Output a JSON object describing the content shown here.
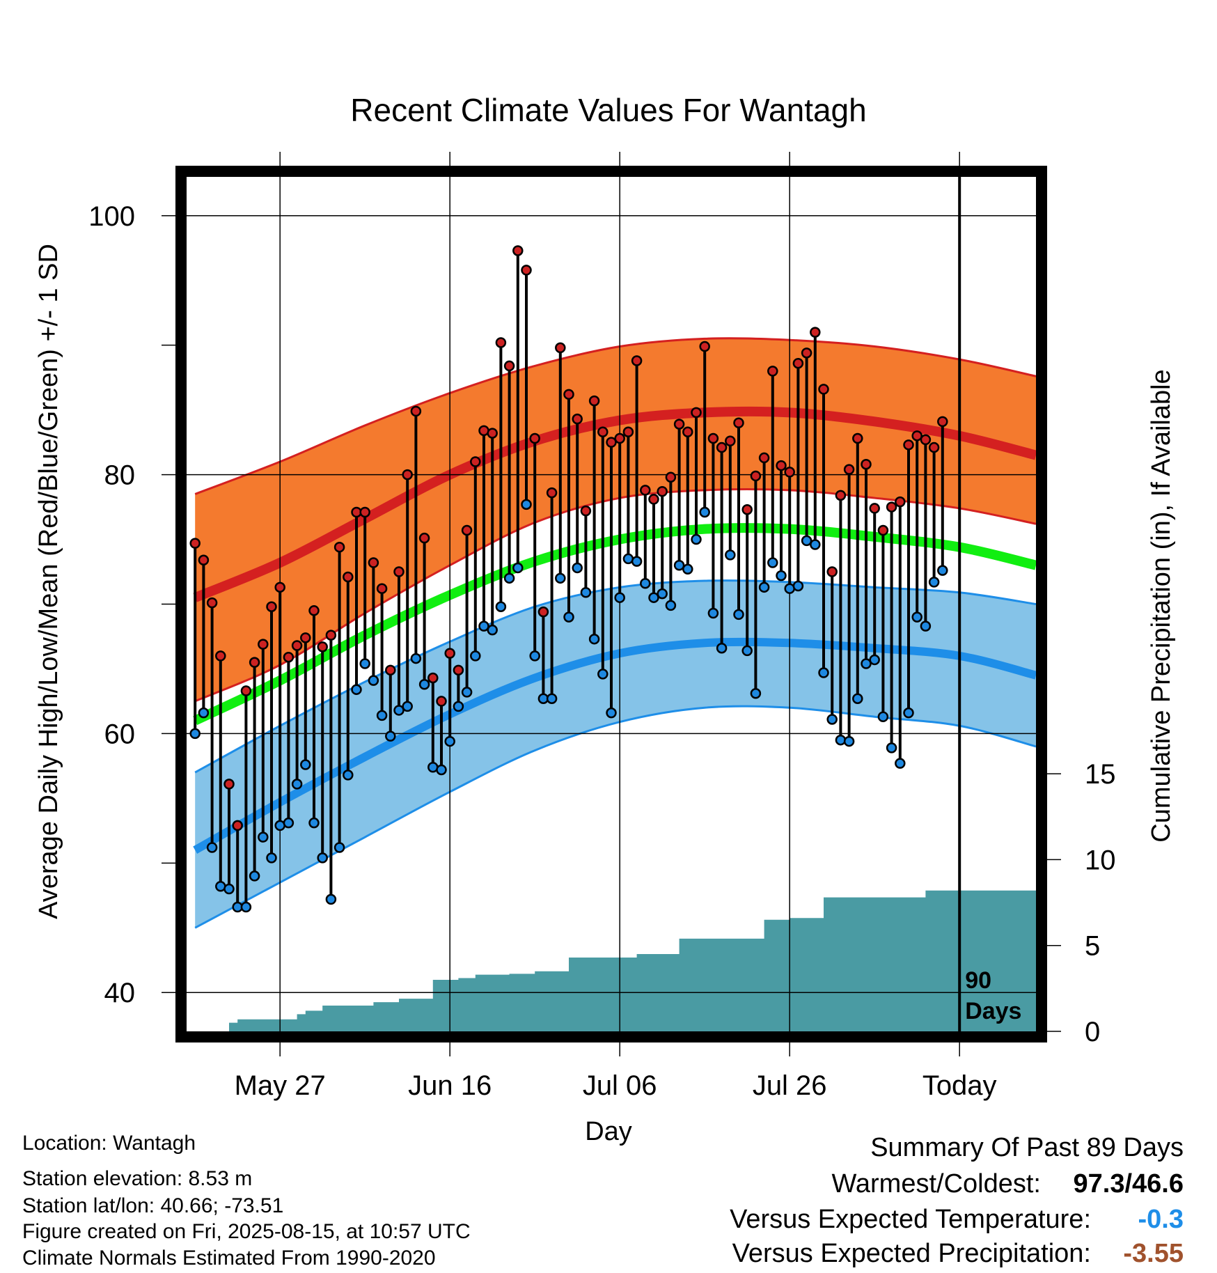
{
  "colors": {
    "high_band": "#f47a2e",
    "high_band_edge": "#d42020",
    "high_mean": "#d42020",
    "low_band": "#85c3e8",
    "low_band_edge": "#1e8ee8",
    "low_mean": "#1e8ee8",
    "mean_line": "#11ee11",
    "precip": "#4a9ba3",
    "high_dot": "#cc2222",
    "low_dot": "#1e88e0",
    "anomaly_temp": "#1e8ee8",
    "anomaly_precip": "#a0522d"
  },
  "chart_data": {
    "type": "line",
    "title": "Recent Climate Values For Wantagh",
    "xlabel": "Day",
    "ylabel_left": "Average Daily High/Low/Mean (Red/Blue/Green) +/- 1 SD",
    "ylabel_right": "Cumulative Precipitation (in), If Available",
    "x_tick_labels": [
      "May 27",
      "Jun 16",
      "Jul 06",
      "Jul 26",
      "Today"
    ],
    "x_tick_days": [
      10,
      30,
      50,
      70,
      90
    ],
    "xlim": [
      -1,
      99
    ],
    "y_left_ticks": [
      40,
      60,
      80,
      100
    ],
    "ylim_left": [
      37,
      103
    ],
    "y_right_ticks": [
      0,
      5,
      10,
      15
    ],
    "today_marker_label": [
      "90",
      "Days"
    ],
    "normals": {
      "x": [
        0,
        10,
        20,
        30,
        40,
        50,
        60,
        70,
        80,
        90,
        99
      ],
      "high_mean": [
        70.5,
        73.2,
        76.6,
        80.0,
        82.6,
        84.2,
        84.8,
        84.8,
        84.1,
        83.0,
        81.5
      ],
      "high_upper": [
        78.5,
        81.0,
        83.8,
        86.3,
        88.4,
        89.9,
        90.5,
        90.4,
        89.9,
        88.9,
        87.6
      ],
      "high_lower": [
        62.5,
        65.3,
        69.3,
        73.0,
        76.3,
        78.2,
        78.8,
        78.8,
        78.2,
        77.4,
        76.2
      ],
      "mean": [
        61.0,
        64.1,
        67.6,
        70.7,
        73.3,
        75.0,
        75.8,
        75.8,
        75.2,
        74.4,
        73.0
      ],
      "low_mean": [
        51.0,
        54.7,
        58.2,
        61.5,
        64.3,
        66.2,
        67.0,
        67.0,
        66.6,
        66.0,
        64.5
      ],
      "low_upper": [
        57.0,
        60.6,
        64.0,
        67.1,
        69.8,
        71.3,
        71.8,
        71.7,
        71.3,
        70.9,
        70.0
      ],
      "low_lower": [
        45.0,
        48.5,
        52.0,
        55.5,
        58.7,
        60.9,
        62.0,
        62.0,
        61.3,
        60.6,
        59.0
      ]
    },
    "observed": {
      "high": [
        74.7,
        73.4,
        70.1,
        66.0,
        56.1,
        52.9,
        63.3,
        65.5,
        66.9,
        69.8,
        71.3,
        65.9,
        66.8,
        67.4,
        69.5,
        66.7,
        67.6,
        74.4,
        72.1,
        77.1,
        77.1,
        73.2,
        71.2,
        64.9,
        72.5,
        80.0,
        84.9,
        75.1,
        64.3,
        62.5,
        66.2,
        64.9,
        75.7,
        81.0,
        83.4,
        83.2,
        90.2,
        88.4,
        97.3,
        95.8,
        82.8,
        69.4,
        78.6,
        89.8,
        86.2,
        84.3,
        77.2,
        85.7,
        83.3,
        82.5,
        82.8,
        83.3,
        88.8,
        78.8,
        78.1,
        78.7,
        79.8,
        83.9,
        83.3,
        84.8,
        89.9,
        82.8,
        82.1,
        82.6,
        84.0,
        77.3,
        79.9,
        81.3,
        88.0,
        80.7,
        80.2,
        88.6,
        89.4,
        91.0,
        86.6,
        72.5,
        78.4,
        80.4,
        82.8,
        80.8,
        77.4,
        75.7,
        77.5,
        77.9,
        82.3,
        83.0,
        82.7,
        82.1,
        84.1
      ],
      "low": [
        60.0,
        61.6,
        51.2,
        48.2,
        48.0,
        46.6,
        46.6,
        49.0,
        52.0,
        50.4,
        52.9,
        53.1,
        56.1,
        57.6,
        53.1,
        50.4,
        47.2,
        51.2,
        56.8,
        63.4,
        65.4,
        64.1,
        61.4,
        59.8,
        61.8,
        62.1,
        65.8,
        63.8,
        57.4,
        57.2,
        59.4,
        62.1,
        63.2,
        66.0,
        68.3,
        68.0,
        69.8,
        72.0,
        72.8,
        77.7,
        66.0,
        62.7,
        62.7,
        72.0,
        69.0,
        72.8,
        70.9,
        67.3,
        64.6,
        61.6,
        70.5,
        73.5,
        73.3,
        71.6,
        70.5,
        70.8,
        69.9,
        73.0,
        72.7,
        75.0,
        77.1,
        69.3,
        66.6,
        73.8,
        69.2,
        66.4,
        63.1,
        71.3,
        73.2,
        72.2,
        71.2,
        71.4,
        74.9,
        74.6,
        64.7,
        61.1,
        59.5,
        59.4,
        62.7,
        65.4,
        65.7,
        61.3,
        58.9,
        57.7,
        61.6,
        69.0,
        68.3,
        71.7,
        72.6
      ]
    },
    "precip_cumulative": {
      "steps": [
        [
          -1,
          0.0
        ],
        [
          4,
          0.5
        ],
        [
          5,
          0.7
        ],
        [
          10,
          0.7
        ],
        [
          12,
          1.0
        ],
        [
          13,
          1.2
        ],
        [
          15,
          1.5
        ],
        [
          21,
          1.7
        ],
        [
          24,
          1.9
        ],
        [
          28,
          3.0
        ],
        [
          31,
          3.1
        ],
        [
          33,
          3.3
        ],
        [
          37,
          3.35
        ],
        [
          40,
          3.5
        ],
        [
          44,
          4.3
        ],
        [
          52,
          4.5
        ],
        [
          57,
          5.4
        ],
        [
          67,
          6.5
        ],
        [
          70,
          6.6
        ],
        [
          74,
          7.8
        ],
        [
          86,
          8.2
        ],
        [
          90,
          8.2
        ],
        [
          99,
          8.2
        ]
      ]
    }
  },
  "info": {
    "location": "Location: Wantagh",
    "elevation": "Station elevation: 8.53 m",
    "latlon": "Station lat/lon: 40.66; -73.51",
    "created": "Figure created on Fri, 2025-08-15, at 10:57 UTC",
    "normals": "Climate Normals Estimated From 1990-2020"
  },
  "summary": {
    "heading": "Summary Of Past 89 Days",
    "warm_cold_label": "Warmest/Coldest:",
    "warm_cold_value": "97.3/46.6",
    "temp_label": "Versus Expected Temperature:",
    "temp_value": "-0.3",
    "precip_label": "Versus Expected Precipitation:",
    "precip_value": "-3.55"
  }
}
